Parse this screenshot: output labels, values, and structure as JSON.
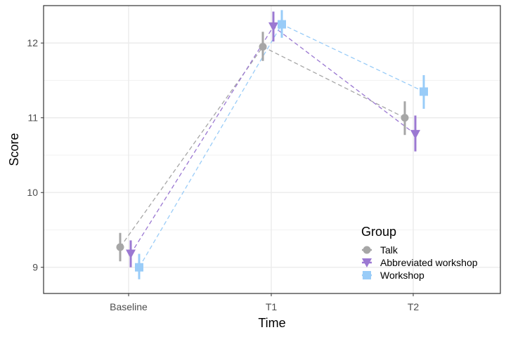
{
  "chart_data": {
    "type": "line",
    "xlabel": "Time",
    "ylabel": "Score",
    "categories": [
      "Baseline",
      "T1",
      "T2"
    ],
    "ylim": [
      8.65,
      12.5
    ],
    "yticks": [
      9,
      10,
      11,
      12
    ],
    "ytick_labels": [
      "9",
      "10",
      "11",
      "12"
    ],
    "grid": true,
    "legend": {
      "title": "Group",
      "position": "bottom-right"
    },
    "series": [
      {
        "name": "Talk",
        "marker": "circle",
        "color": "#a6a6a6",
        "values": [
          9.27,
          11.95,
          11.0
        ],
        "lower": [
          9.08,
          11.76,
          10.77
        ],
        "upper": [
          9.46,
          12.15,
          11.22
        ]
      },
      {
        "name": "Abbreviated workshop",
        "marker": "triangle-down",
        "color": "#9b78d2",
        "values": [
          9.18,
          12.22,
          10.78
        ],
        "lower": [
          9.0,
          12.02,
          10.55
        ],
        "upper": [
          9.36,
          12.42,
          11.03
        ]
      },
      {
        "name": "Workshop",
        "marker": "square",
        "color": "#99ccf8",
        "values": [
          9.0,
          12.25,
          11.35
        ],
        "lower": [
          8.84,
          12.07,
          11.12
        ],
        "upper": [
          9.18,
          12.44,
          11.57
        ]
      }
    ]
  }
}
